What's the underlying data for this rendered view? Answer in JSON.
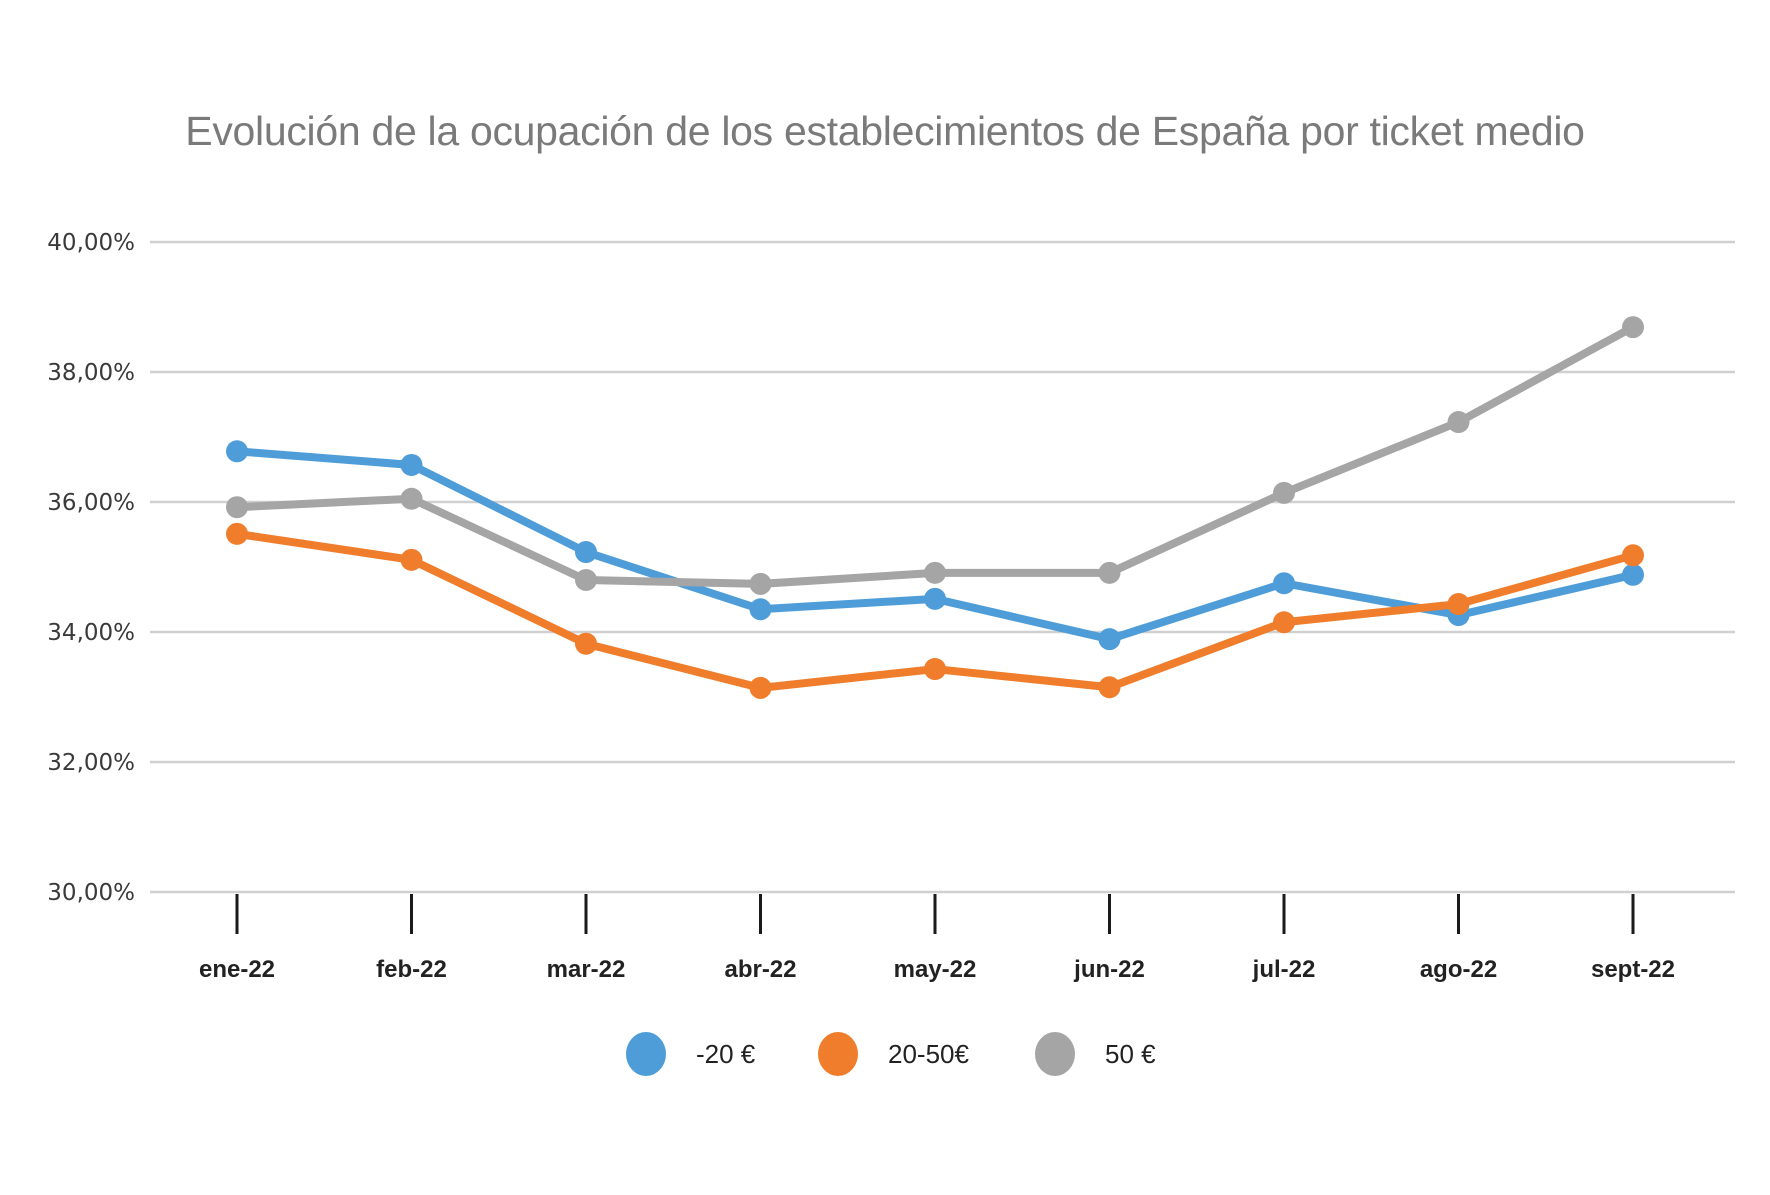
{
  "chart_data": {
    "type": "line",
    "title": "Evolución de la ocupación de los establecimientos de España por ticket medio",
    "xlabel": "",
    "ylabel": "",
    "categories": [
      "ene-22",
      "feb-22",
      "mar-22",
      "abr-22",
      "may-22",
      "jun-22",
      "jul-22",
      "ago-22",
      "sept-22"
    ],
    "ylim": [
      30,
      40
    ],
    "yticks": [
      30,
      32,
      34,
      36,
      38,
      40
    ],
    "ytick_labels": [
      "30,00%",
      "32,00%",
      "34,00%",
      "36,00%",
      "38,00%",
      "40,00%"
    ],
    "grid": true,
    "legend_position": "bottom",
    "series": [
      {
        "name": "-20 €",
        "color": "#4e9dd8",
        "values": [
          36.78,
          36.57,
          35.23,
          34.35,
          34.51,
          33.89,
          34.75,
          34.26,
          34.88
        ]
      },
      {
        "name": "20-50€",
        "color": "#ef7d2b",
        "values": [
          35.51,
          35.11,
          33.82,
          33.14,
          33.43,
          33.15,
          34.15,
          34.43,
          35.18
        ]
      },
      {
        "name": "50 €",
        "color": "#a5a5a5",
        "values": [
          35.92,
          36.05,
          34.8,
          34.74,
          34.91,
          34.91,
          36.14,
          37.23,
          38.69
        ]
      }
    ]
  }
}
